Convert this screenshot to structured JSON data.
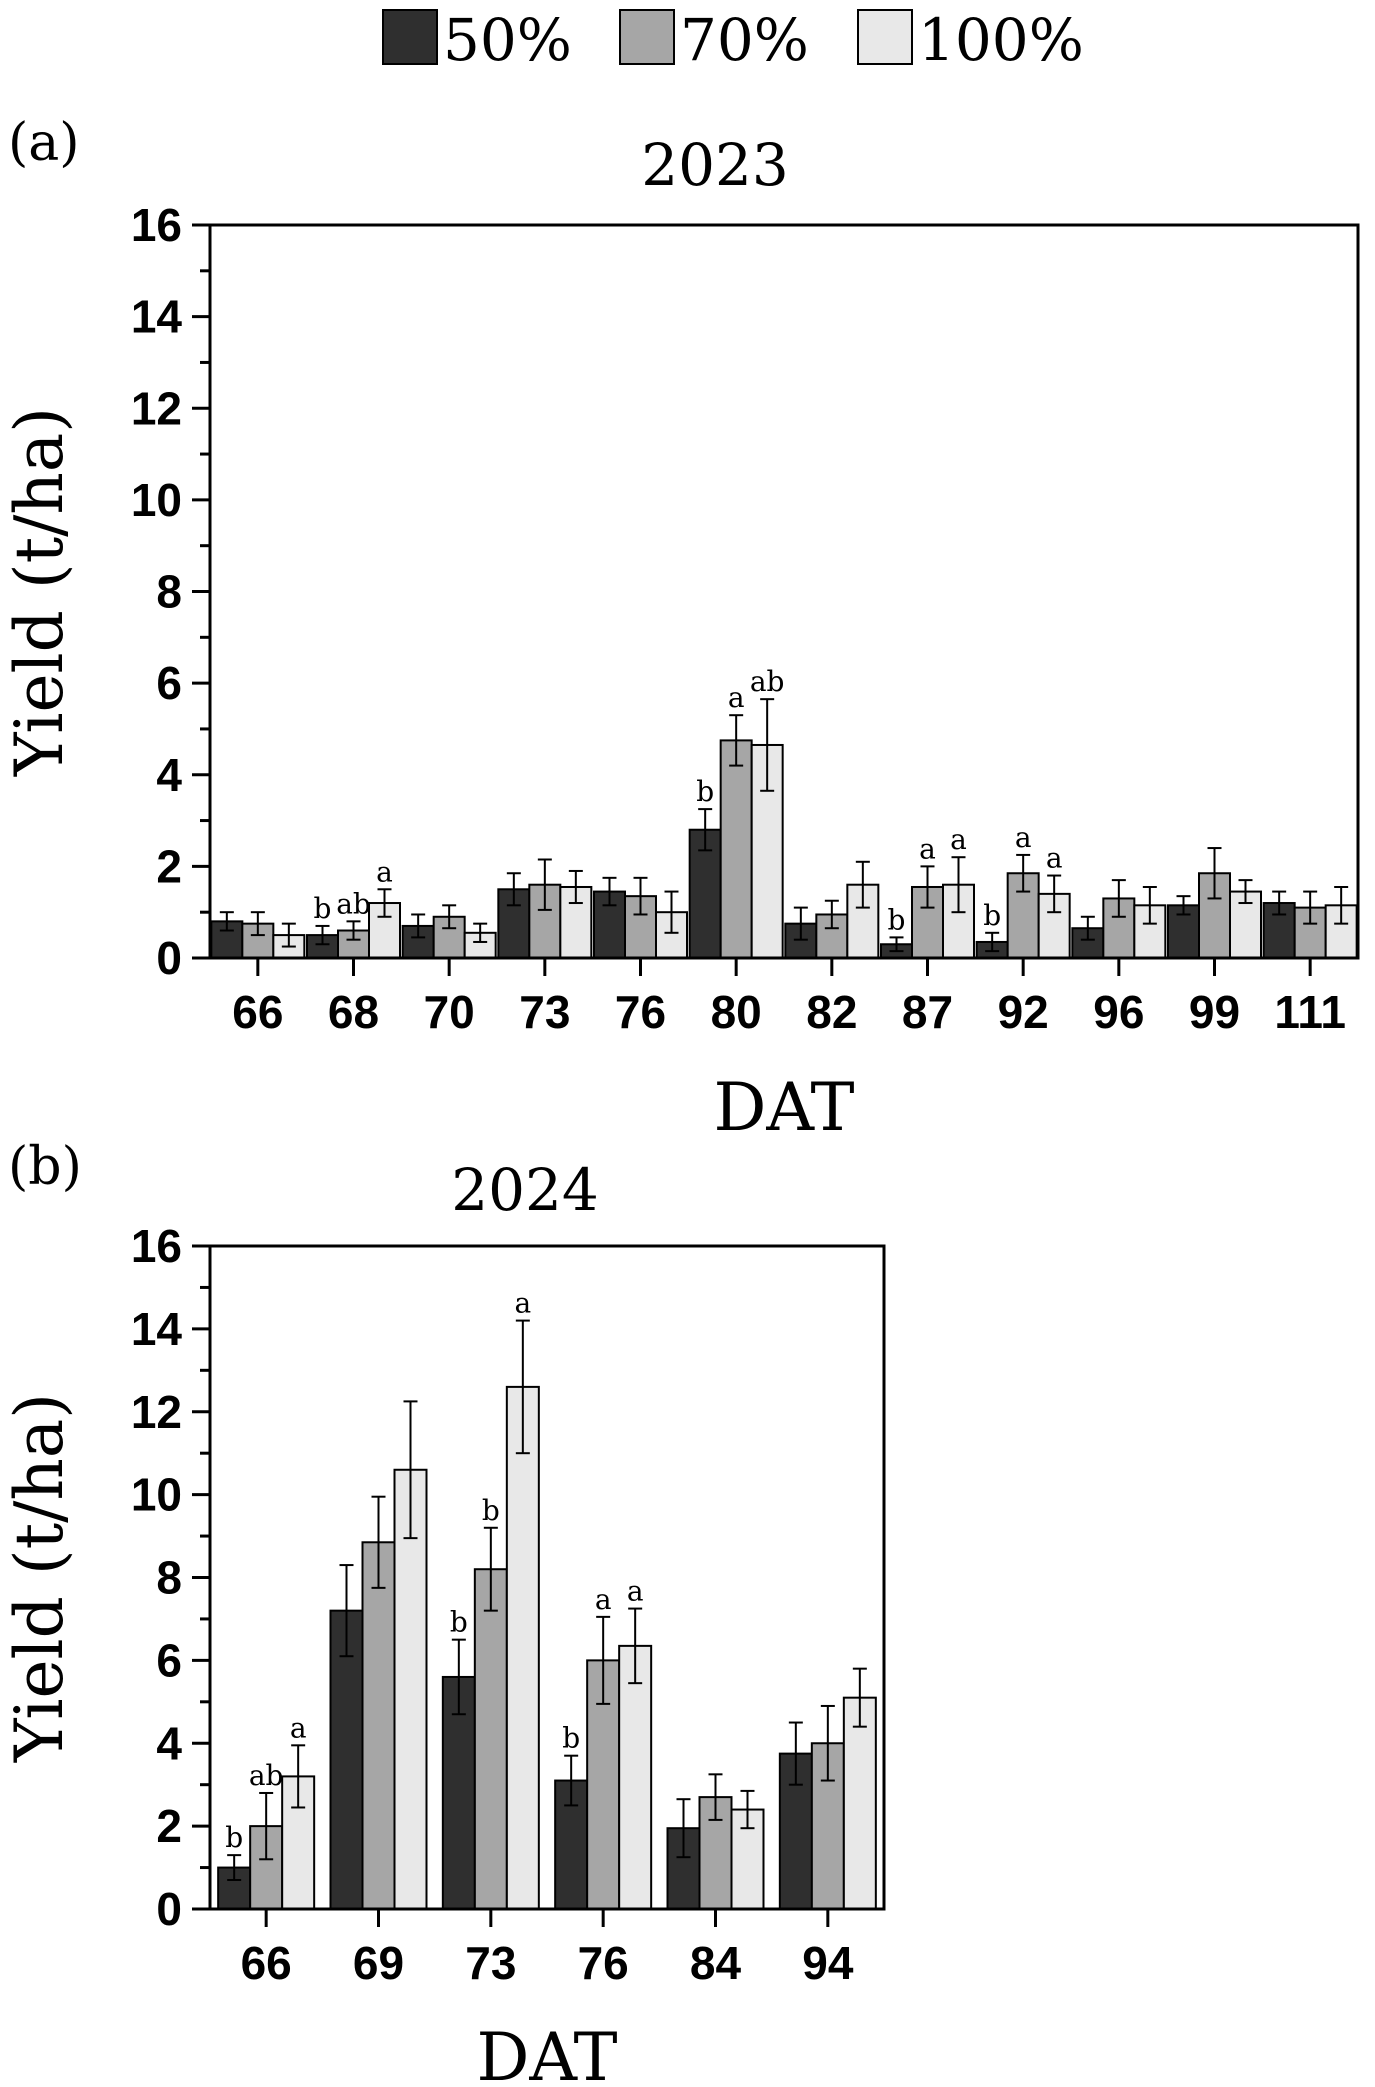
{
  "legend": {
    "items": [
      {
        "label": "50%",
        "color": "#2f2f2f"
      },
      {
        "label": "70%",
        "color": "#a6a6a6"
      },
      {
        "label": "100%",
        "color": "#e8e8e8"
      }
    ]
  },
  "chart_data": [
    {
      "type": "bar",
      "panel_label": "(a)",
      "title": "2023",
      "xlabel": "DAT",
      "ylabel": "Yield (t/ha)",
      "ylim": [
        0,
        16
      ],
      "yticks": [
        "0",
        "2",
        "4",
        "6",
        "8",
        "10",
        "12",
        "14",
        "16"
      ],
      "categories": [
        "66",
        "68",
        "70",
        "73",
        "76",
        "80",
        "82",
        "87",
        "92",
        "96",
        "99",
        "111"
      ],
      "series": [
        {
          "name": "50%",
          "color": "#2f2f2f",
          "values": [
            0.8,
            0.5,
            0.7,
            1.5,
            1.45,
            2.8,
            0.75,
            0.3,
            0.35,
            0.65,
            1.15,
            1.2
          ],
          "errors": [
            0.2,
            0.2,
            0.25,
            0.35,
            0.3,
            0.45,
            0.35,
            0.15,
            0.2,
            0.25,
            0.2,
            0.25
          ],
          "letters": [
            "",
            "b",
            "",
            "",
            "",
            "b",
            "",
            "b",
            "b",
            "",
            "",
            ""
          ]
        },
        {
          "name": "70%",
          "color": "#a6a6a6",
          "values": [
            0.75,
            0.6,
            0.9,
            1.6,
            1.35,
            4.75,
            0.95,
            1.55,
            1.85,
            1.3,
            1.85,
            1.1
          ],
          "errors": [
            0.25,
            0.2,
            0.25,
            0.55,
            0.4,
            0.55,
            0.3,
            0.45,
            0.4,
            0.4,
            0.55,
            0.35
          ],
          "letters": [
            "",
            "ab",
            "",
            "",
            "",
            "a",
            "",
            "a",
            "a",
            "",
            "",
            ""
          ]
        },
        {
          "name": "100%",
          "color": "#e8e8e8",
          "values": [
            0.5,
            1.2,
            0.55,
            1.55,
            1.0,
            4.65,
            1.6,
            1.6,
            1.4,
            1.15,
            1.45,
            1.15
          ],
          "errors": [
            0.25,
            0.3,
            0.2,
            0.35,
            0.45,
            1.0,
            0.5,
            0.6,
            0.4,
            0.4,
            0.25,
            0.4
          ],
          "letters": [
            "",
            "a",
            "",
            "",
            "",
            "ab",
            "",
            "a",
            "a",
            "",
            "",
            ""
          ]
        }
      ]
    },
    {
      "type": "bar",
      "panel_label": "(b)",
      "title": "2024",
      "xlabel": "DAT",
      "ylabel": "Yield (t/ha)",
      "ylim": [
        0,
        16
      ],
      "yticks": [
        "0",
        "2",
        "4",
        "6",
        "8",
        "10",
        "12",
        "14",
        "16"
      ],
      "categories": [
        "66",
        "69",
        "73",
        "76",
        "84",
        "94"
      ],
      "series": [
        {
          "name": "50%",
          "color": "#2f2f2f",
          "values": [
            1.0,
            7.2,
            5.6,
            3.1,
            1.95,
            3.75
          ],
          "errors": [
            0.3,
            1.1,
            0.9,
            0.6,
            0.7,
            0.75
          ],
          "letters": [
            "b",
            "",
            "b",
            "b",
            "",
            ""
          ]
        },
        {
          "name": "70%",
          "color": "#a6a6a6",
          "values": [
            2.0,
            8.85,
            8.2,
            6.0,
            2.7,
            4.0
          ],
          "errors": [
            0.8,
            1.1,
            1.0,
            1.05,
            0.55,
            0.9
          ],
          "letters": [
            "ab",
            "",
            "b",
            "a",
            "",
            ""
          ]
        },
        {
          "name": "100%",
          "color": "#e8e8e8",
          "values": [
            3.2,
            10.6,
            12.6,
            6.35,
            2.4,
            5.1
          ],
          "errors": [
            0.75,
            1.65,
            1.6,
            0.9,
            0.45,
            0.7
          ],
          "letters": [
            "a",
            "",
            "a",
            "a",
            "",
            ""
          ]
        }
      ]
    }
  ]
}
